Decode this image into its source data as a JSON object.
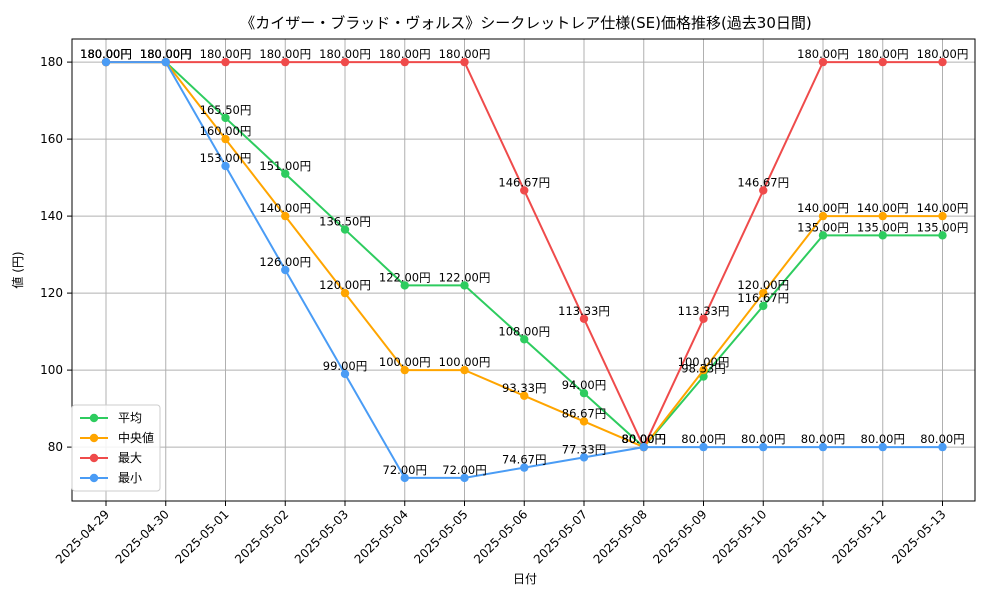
{
  "chart_data": {
    "type": "line",
    "title": "《カイザー・ブラッド・ヴォルス》シークレットレア仕様(SE)価格推移(過去30日間)",
    "xlabel": "日付",
    "ylabel": "値 (円)",
    "ylim": [
      66,
      186
    ],
    "yticks": [
      80,
      100,
      120,
      140,
      160,
      180
    ],
    "grid": true,
    "legend_position": "lower-left",
    "value_suffix": "円",
    "categories": [
      "2025-04-29",
      "2025-04-30",
      "2025-05-01",
      "2025-05-02",
      "2025-05-03",
      "2025-05-04",
      "2025-05-05",
      "2025-05-06",
      "2025-05-07",
      "2025-05-08",
      "2025-05-09",
      "2025-05-10",
      "2025-05-11",
      "2025-05-12",
      "2025-05-13"
    ],
    "series": [
      {
        "name": "平均",
        "color": "#2ecc5f",
        "values": [
          180.0,
          180.0,
          165.5,
          151.0,
          136.5,
          122.0,
          122.0,
          108.0,
          94.0,
          80.0,
          98.33,
          116.67,
          135.0,
          135.0,
          135.0
        ]
      },
      {
        "name": "中央値",
        "color": "#ffa500",
        "values": [
          180.0,
          180.0,
          160.0,
          140.0,
          120.0,
          100.0,
          100.0,
          93.33,
          86.67,
          80.0,
          100.0,
          120.0,
          140.0,
          140.0,
          140.0
        ]
      },
      {
        "name": "最大",
        "color": "#ef4b4b",
        "values": [
          180.0,
          180.0,
          180.0,
          180.0,
          180.0,
          180.0,
          180.0,
          146.67,
          113.33,
          80.0,
          113.33,
          146.67,
          180.0,
          180.0,
          180.0
        ]
      },
      {
        "name": "最小",
        "color": "#4a9cf5",
        "values": [
          180.0,
          180.0,
          153.0,
          126.0,
          99.0,
          72.0,
          72.0,
          74.67,
          77.33,
          80.0,
          80.0,
          80.0,
          80.0,
          80.0,
          80.0
        ]
      }
    ]
  }
}
